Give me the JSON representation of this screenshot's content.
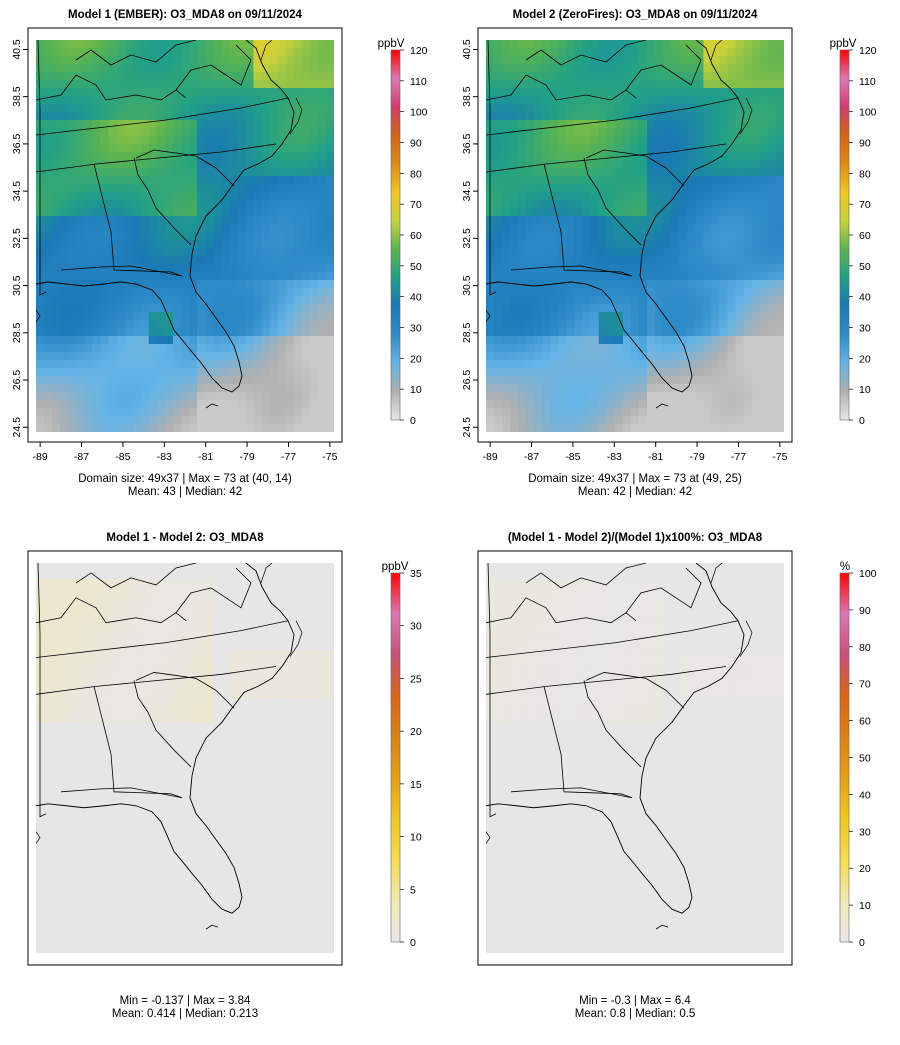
{
  "chart_data": [
    {
      "type": "heatmap",
      "title": "Model 1 (EMBER): O3_MDA8 on 09/11/2024",
      "xlim": [
        -89.2,
        -74.8
      ],
      "ylim": [
        24.3,
        40.9
      ],
      "x_ticks": [
        "-89",
        "-87",
        "-85",
        "-83",
        "-81",
        "-79",
        "-77",
        "-75"
      ],
      "y_ticks": [
        "24.5",
        "26.5",
        "28.5",
        "30.5",
        "32.5",
        "34.5",
        "36.5",
        "38.5",
        "40.5"
      ],
      "colorbar": {
        "unit": "ppbV",
        "range": [
          0,
          120
        ],
        "ticks": [
          "0",
          "10",
          "20",
          "30",
          "40",
          "50",
          "60",
          "70",
          "80",
          "90",
          "100",
          "110",
          "120"
        ]
      },
      "grid_size": [
        49,
        37
      ],
      "summary": [
        "Domain size: 49x37 | Max = 73 at (40, 14)",
        "Mean: 43 |  Median: 42"
      ],
      "stats": {
        "max": 73,
        "max_at": [
          40,
          14
        ],
        "mean": 43,
        "median": 42
      }
    },
    {
      "type": "heatmap",
      "title": "Model 2 (ZeroFires): O3_MDA8 on 09/11/2024",
      "xlim": [
        -89.2,
        -74.8
      ],
      "ylim": [
        24.3,
        40.9
      ],
      "x_ticks": [
        "-89",
        "-87",
        "-85",
        "-83",
        "-81",
        "-79",
        "-77",
        "-75"
      ],
      "y_ticks": [
        "24.5",
        "26.5",
        "28.5",
        "30.5",
        "32.5",
        "34.5",
        "36.5",
        "38.5",
        "40.5"
      ],
      "colorbar": {
        "unit": "ppbV",
        "range": [
          0,
          120
        ],
        "ticks": [
          "0",
          "10",
          "20",
          "30",
          "40",
          "50",
          "60",
          "70",
          "80",
          "90",
          "100",
          "110",
          "120"
        ]
      },
      "grid_size": [
        49,
        37
      ],
      "summary": [
        "Domain size: 49x37 | Max = 73 at (49, 25)",
        "Mean: 42 |  Median: 42"
      ],
      "stats": {
        "max": 73,
        "max_at": [
          49,
          25
        ],
        "mean": 42,
        "median": 42
      }
    },
    {
      "type": "heatmap",
      "title": "Model 1 - Model 2: O3_MDA8",
      "colorbar": {
        "unit": "ppbV",
        "range": [
          0,
          35
        ],
        "ticks": [
          "0",
          "5",
          "10",
          "15",
          "20",
          "25",
          "30",
          "35"
        ]
      },
      "summary": [
        "Min = -0.137 | Max = 3.84",
        "Mean: 0.414 |  Median: 0.213"
      ],
      "stats": {
        "min": -0.137,
        "max": 3.84,
        "mean": 0.414,
        "median": 0.213
      }
    },
    {
      "type": "heatmap",
      "title": "(Model 1 - Model 2)/(Model 1)x100%: O3_MDA8",
      "colorbar": {
        "unit": "%",
        "range": [
          0,
          100
        ],
        "ticks": [
          "0",
          "10",
          "20",
          "30",
          "40",
          "50",
          "60",
          "70",
          "80",
          "90",
          "100"
        ]
      },
      "summary": [
        "Min = -0.3 | Max = 6.4",
        "Mean: 0.8 |  Median: 0.5"
      ],
      "stats": {
        "min": -0.3,
        "max": 6.4,
        "mean": 0.8,
        "median": 0.5
      }
    }
  ],
  "colors": {
    "ozone_scale": [
      "#e8e8e8",
      "#b0b0b0",
      "#64b4e6",
      "#2e8cc8",
      "#1a78b4",
      "#20a088",
      "#5ab450",
      "#c8d23c",
      "#f0c81e",
      "#e08c14",
      "#d26414",
      "#d23c6e",
      "#dc78b4",
      "#ff0000"
    ],
    "diff_scale": [
      "#e8e8e8",
      "#f0e8b4",
      "#f5dc50",
      "#f0c81e",
      "#e6a014",
      "#dc8214",
      "#dc6414",
      "#c85078",
      "#dc78b4",
      "#ff0000"
    ],
    "background": "#e6e6e6",
    "map_lines": "#000000"
  }
}
